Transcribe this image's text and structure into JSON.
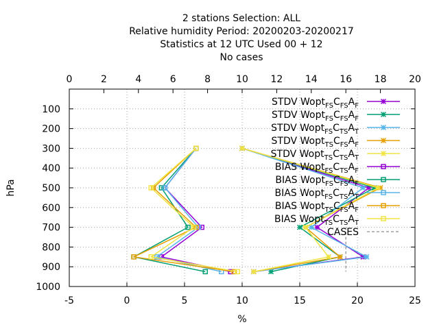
{
  "chart_data": {
    "type": "line",
    "title_lines": [
      "2 stations Selection: ALL",
      "Relative humidity  Period: 20200203-20200217",
      "Statistics at 12 UTC  Used  00 + 12",
      "No cases"
    ],
    "xlabel": "%",
    "ylabel": "hPa",
    "xlim": [
      -5,
      25
    ],
    "x2lim": [
      0,
      20
    ],
    "ylim": [
      1000,
      0
    ],
    "x_ticks": [
      "-5",
      "0",
      "5",
      "10",
      "15",
      "20",
      "25"
    ],
    "x2_ticks": [
      "0",
      "2",
      "4",
      "6",
      "8",
      "10",
      "12",
      "14",
      "16",
      "18",
      "20"
    ],
    "y_ticks": [
      "100",
      "200",
      "300",
      "400",
      "500",
      "600",
      "700",
      "800",
      "900",
      "1000"
    ],
    "grid": true,
    "legend_position": "top-right",
    "levels": [
      300,
      500,
      700,
      850,
      925
    ],
    "series": [
      {
        "legend": {
          "pre": "STDV Wopt",
          "sub1": "FS",
          "mid1": "C",
          "sub2": "FS",
          "mid2": "A",
          "sub3": "F"
        },
        "color": "#9400d3",
        "marker": "star",
        "values": [
          10,
          21,
          16.5,
          20.5,
          11
        ]
      },
      {
        "legend": {
          "pre": "STDV Wopt",
          "sub1": "FS",
          "mid1": "C",
          "sub2": "FS",
          "mid2": "A",
          "sub3": "F"
        },
        "color": "#009e73",
        "marker": "star",
        "values": [
          10,
          21.5,
          15,
          18.5,
          12.5
        ]
      },
      {
        "legend": {
          "pre": "STDV Wopt",
          "sub1": "FS",
          "mid1": "C",
          "sub2": "TS",
          "mid2": "A",
          "sub3": "T"
        },
        "color": "#56b4e9",
        "marker": "star",
        "values": [
          10,
          20.5,
          16,
          20.8,
          11
        ]
      },
      {
        "legend": {
          "pre": "STDV Wopt",
          "sub1": "TS",
          "mid1": "C",
          "sub2": "FS",
          "mid2": "A",
          "sub3": "F"
        },
        "color": "#e69f00",
        "marker": "star",
        "values": [
          10,
          22,
          15.5,
          18.5,
          11
        ]
      },
      {
        "legend": {
          "pre": "STDV Wopt",
          "sub1": "TS",
          "mid1": "C",
          "sub2": "TS",
          "mid2": "A",
          "sub3": "T"
        },
        "color": "#f0e442",
        "marker": "star",
        "values": [
          10,
          21.8,
          15.5,
          17.5,
          11
        ]
      },
      {
        "legend": {
          "pre": "BIAS Wopt",
          "sub1": "FS",
          "mid1": "C",
          "sub2": "TS",
          "mid2": "A",
          "sub3": "F"
        },
        "color": "#9400d3",
        "marker": "square",
        "values": [
          6,
          3.3,
          6.5,
          3,
          9
        ]
      },
      {
        "legend": {
          "pre": "BIAS Wopt",
          "sub1": "FS",
          "mid1": "C",
          "sub2": "FS",
          "mid2": "A",
          "sub3": "F"
        },
        "color": "#009e73",
        "marker": "square",
        "values": [
          6,
          3,
          5.3,
          0.6,
          6.8
        ]
      },
      {
        "legend": {
          "pre": "BIAS Wopt",
          "sub1": "FS",
          "mid1": "C",
          "sub2": "TS",
          "mid2": "A",
          "sub3": "T"
        },
        "color": "#56b4e9",
        "marker": "square",
        "values": [
          6,
          3.3,
          6.2,
          2.6,
          8.2
        ]
      },
      {
        "legend": {
          "pre": "BIAS Wopt",
          "sub1": "TS",
          "mid1": "C",
          "sub2": "FS",
          "mid2": "A",
          "sub3": "F"
        },
        "color": "#e69f00",
        "marker": "square",
        "values": [
          6,
          2.3,
          6,
          0.6,
          9.3
        ]
      },
      {
        "legend": {
          "pre": "BIAS Wopt",
          "sub1": "TS",
          "mid1": "C",
          "sub2": "TS",
          "mid2": "A",
          "sub3": "T"
        },
        "color": "#f0e442",
        "marker": "square",
        "values": [
          6,
          2.1,
          5.8,
          2.1,
          9.6
        ]
      }
    ],
    "cases_label": "CASES",
    "cases_color": "#a0a0a0",
    "cases": {
      "x": 19,
      "levels": [
        700,
        925
      ]
    }
  }
}
